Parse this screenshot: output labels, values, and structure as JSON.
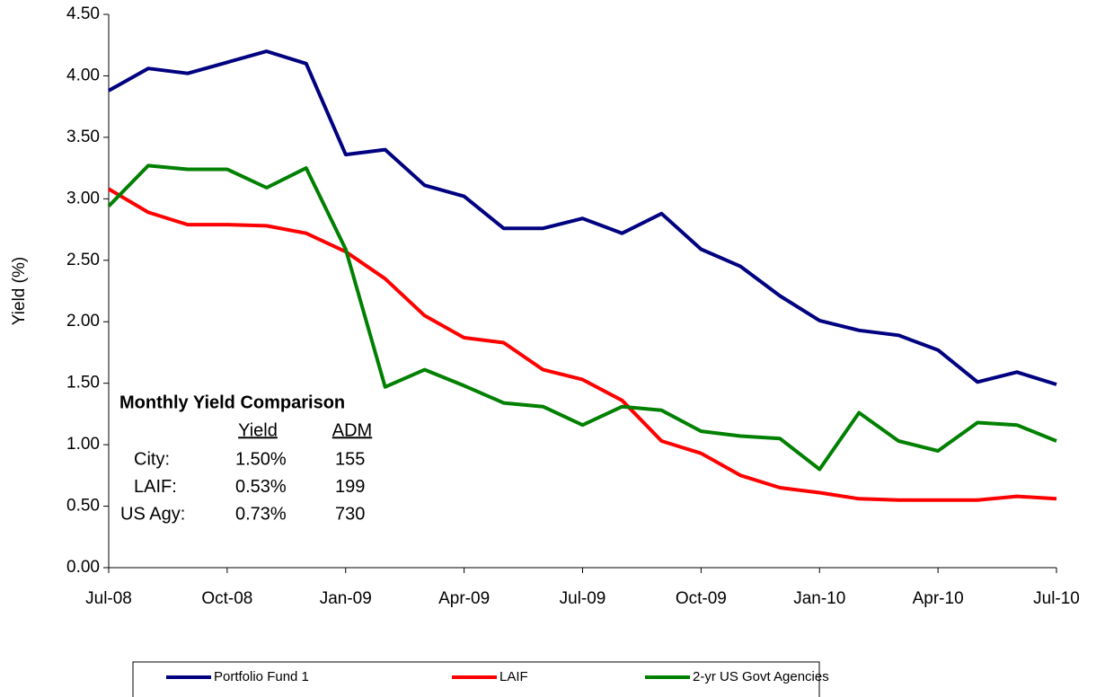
{
  "chart_data": {
    "type": "line",
    "y_label": "Yield (%)",
    "categories": [
      "Jul-08",
      null,
      null,
      "Oct-08",
      null,
      null,
      "Jan-09",
      null,
      null,
      "Apr-09",
      null,
      null,
      "Jul-09",
      null,
      null,
      "Oct-09",
      null,
      null,
      "Jan-10",
      null,
      null,
      "Apr-10",
      null,
      null,
      "Jul-10"
    ],
    "series": [
      {
        "name": "Portfolio Fund 1",
        "color": "#000080",
        "values": [
          3.88,
          4.06,
          4.02,
          4.11,
          4.2,
          4.1,
          3.36,
          3.4,
          3.11,
          3.02,
          2.76,
          2.76,
          2.84,
          2.72,
          2.88,
          2.59,
          2.45,
          2.21,
          2.01,
          1.93,
          1.89,
          1.77,
          1.51,
          1.59,
          1.49
        ]
      },
      {
        "name": "LAIF",
        "color": "#ff0000",
        "values": [
          3.08,
          2.89,
          2.79,
          2.79,
          2.78,
          2.72,
          2.57,
          2.35,
          2.05,
          1.87,
          1.83,
          1.61,
          1.53,
          1.36,
          1.03,
          0.93,
          0.75,
          0.65,
          0.61,
          0.56,
          0.55,
          0.55,
          0.55,
          0.58,
          0.56
        ]
      },
      {
        "name": "2-yr US Govt Agencies",
        "color": "#008000",
        "values": [
          2.94,
          3.27,
          3.24,
          3.24,
          3.09,
          3.25,
          2.59,
          1.47,
          1.61,
          1.48,
          1.34,
          1.31,
          1.16,
          1.31,
          1.28,
          1.11,
          1.07,
          1.05,
          0.8,
          1.26,
          1.03,
          0.95,
          1.18,
          1.16,
          1.03
        ]
      }
    ],
    "ylim": [
      0,
      4.5
    ],
    "yticks": [
      {
        "value": 0,
        "label": "0.00"
      },
      {
        "value": 0.5,
        "label": "0.50"
      },
      {
        "value": 1,
        "label": "1.00"
      },
      {
        "value": 1.5,
        "label": "1.50"
      },
      {
        "value": 2,
        "label": "2.00"
      },
      {
        "value": 2.5,
        "label": "2.50"
      },
      {
        "value": 3,
        "label": "3.00"
      },
      {
        "value": 3.5,
        "label": "3.50"
      },
      {
        "value": 4,
        "label": "4.00"
      },
      {
        "value": 4.5,
        "label": "4.50"
      }
    ],
    "grid": false,
    "legend": "bottom",
    "annotation": {
      "title": "Monthly Yield Comparison",
      "headers": [
        "Yield",
        "ADM"
      ],
      "rows": [
        [
          "City:",
          "1.50%",
          "155"
        ],
        [
          "LAIF:",
          "0.53%",
          "199"
        ],
        [
          "US Agy:",
          "0.73%",
          "730"
        ]
      ]
    }
  }
}
